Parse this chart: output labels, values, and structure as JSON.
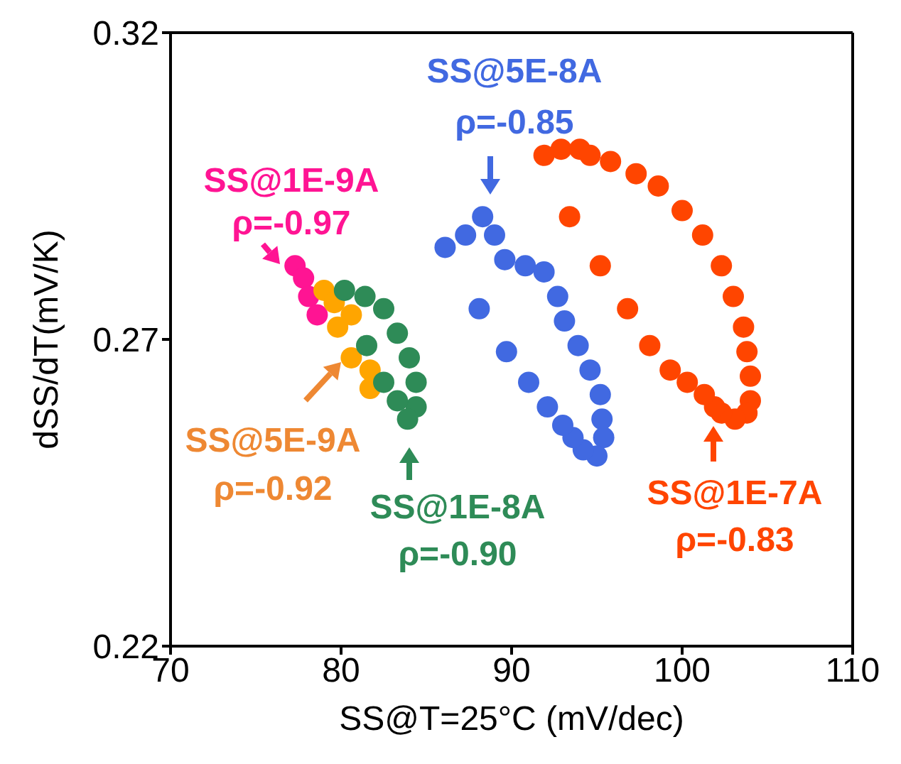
{
  "chart_data": {
    "type": "scatter",
    "xlabel": "SS@T=25°C (mV/dec)",
    "ylabel": "dSS/dT(mV/K)",
    "xlim": [
      70,
      110
    ],
    "xticks": [
      70,
      80,
      90,
      100,
      110
    ],
    "ylim": [
      0.22,
      0.32
    ],
    "yticks": [
      0.22,
      0.27,
      0.32
    ],
    "marker": "circle",
    "legend": false,
    "series": [
      {
        "color": "#ff1493",
        "x": [
          77.3,
          77.8,
          78.1,
          78.6
        ],
        "values": [
          0.282,
          0.28,
          0.277,
          0.274
        ]
      },
      {
        "color": "#ffa500",
        "x": [
          79.0,
          79.6,
          80.6,
          79.8,
          80.6,
          81.7,
          81.7
        ],
        "values": [
          0.278,
          0.276,
          0.274,
          0.272,
          0.267,
          0.265,
          0.262
        ]
      },
      {
        "color": "#2e8b57",
        "x": [
          80.2,
          81.4,
          82.5,
          83.3,
          84.0,
          84.4,
          84.4,
          83.9,
          83.3,
          82.5,
          81.5
        ],
        "values": [
          0.278,
          0.277,
          0.275,
          0.271,
          0.267,
          0.263,
          0.259,
          0.257,
          0.26,
          0.263,
          0.269
        ]
      },
      {
        "color": "#4169e1",
        "x": [
          86.1,
          87.3,
          88.3,
          89.0,
          89.6,
          90.8,
          91.9,
          92.7,
          93.1,
          93.9,
          94.6,
          95.2,
          95.3,
          95.4,
          95.0,
          94.2,
          93.6,
          93.0,
          92.1,
          91.0,
          89.7,
          88.1
        ],
        "values": [
          0.285,
          0.287,
          0.29,
          0.287,
          0.283,
          0.282,
          0.281,
          0.277,
          0.273,
          0.269,
          0.265,
          0.261,
          0.257,
          0.254,
          0.251,
          0.252,
          0.254,
          0.256,
          0.259,
          0.263,
          0.268,
          0.275
        ]
      },
      {
        "color": "#ff4500",
        "x": [
          91.9,
          92.9,
          94.0,
          94.6,
          95.8,
          97.3,
          98.6,
          100.0,
          101.2,
          102.3,
          103.0,
          103.6,
          103.8,
          104.0,
          104.0,
          103.8,
          103.1,
          102.3,
          101.9,
          101.3,
          100.3,
          99.3,
          98.1,
          96.8,
          95.2,
          93.4
        ],
        "values": [
          0.3,
          0.301,
          0.301,
          0.3,
          0.299,
          0.297,
          0.295,
          0.291,
          0.287,
          0.282,
          0.277,
          0.272,
          0.268,
          0.264,
          0.26,
          0.258,
          0.257,
          0.258,
          0.259,
          0.261,
          0.263,
          0.265,
          0.269,
          0.275,
          0.282,
          0.29
        ]
      }
    ],
    "annotations": [
      "SS@1E-9A\nρ=-0.97",
      "SS@5E-9A\nρ=-0.92",
      "SS@1E-8A\nρ=-0.90",
      "SS@5E-8A\nρ=-0.85",
      "SS@1E-7A\nρ=-0.83"
    ]
  }
}
